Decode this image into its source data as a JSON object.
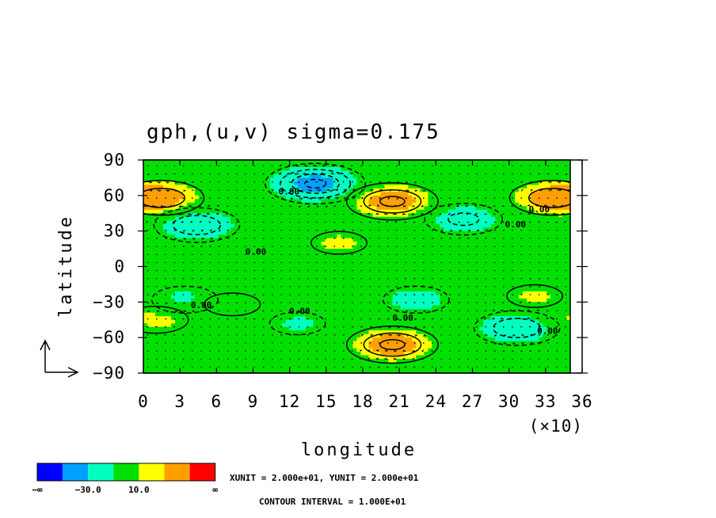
{
  "chart_data": {
    "type": "heatmap",
    "title": "gph,(u,v) sigma=0.175",
    "xlabel": "longitude",
    "ylabel": "latitude",
    "x_scale_note": "(×10)",
    "xlim": [
      0,
      36
    ],
    "ylim": [
      -90,
      90
    ],
    "x_ticks": [
      "0",
      "3",
      "6",
      "9",
      "12",
      "15",
      "18",
      "21",
      "24",
      "27",
      "30",
      "33",
      "36"
    ],
    "y_ticks": [
      "90",
      "60",
      "30",
      "0",
      "−30",
      "−60",
      "−90"
    ],
    "x_tick_values": [
      0,
      3,
      6,
      9,
      12,
      15,
      18,
      21,
      24,
      27,
      30,
      33,
      36
    ],
    "y_tick_values": [
      90,
      60,
      30,
      0,
      -30,
      -60,
      -90
    ],
    "contour_labels": [
      "0.00",
      "0.00",
      "0.00",
      "0.00",
      "0.00",
      "0.00",
      "0.00",
      "0.00"
    ],
    "colorbar": {
      "colors": [
        "#0000ff",
        "#00a0ff",
        "#00ffc0",
        "#00e000",
        "#ffff00",
        "#ffa000",
        "#ff0000"
      ],
      "labels": [
        "−∞",
        "−30.0",
        "10.0",
        "∞"
      ]
    },
    "unit_text": "XUNIT = 2.000e+01, YUNIT = 2.000e+01",
    "contour_interval_text": "CONTOUR INTERVAL = 1.000E+01",
    "features": [
      {
        "x": 1.5,
        "y": 58,
        "value": 25
      },
      {
        "x": 34.5,
        "y": 58,
        "value": 25
      },
      {
        "x": 21,
        "y": 55,
        "value": 30
      },
      {
        "x": 21,
        "y": -66,
        "value": 30
      },
      {
        "x": 14.5,
        "y": 70,
        "value": -40
      },
      {
        "x": 4.5,
        "y": 35,
        "value": -25
      },
      {
        "x": 27,
        "y": 40,
        "value": -20
      },
      {
        "x": 31.5,
        "y": -52,
        "value": -25
      },
      {
        "x": 23,
        "y": -28,
        "value": -15
      },
      {
        "x": 3.5,
        "y": -28,
        "value": -15
      },
      {
        "x": 13,
        "y": -48,
        "value": -12
      },
      {
        "x": 16.5,
        "y": 20,
        "value": 12
      },
      {
        "x": 33,
        "y": -25,
        "value": 12
      },
      {
        "x": 7.5,
        "y": -32,
        "value": 12
      },
      {
        "x": 1,
        "y": -45,
        "value": 15
      }
    ]
  }
}
